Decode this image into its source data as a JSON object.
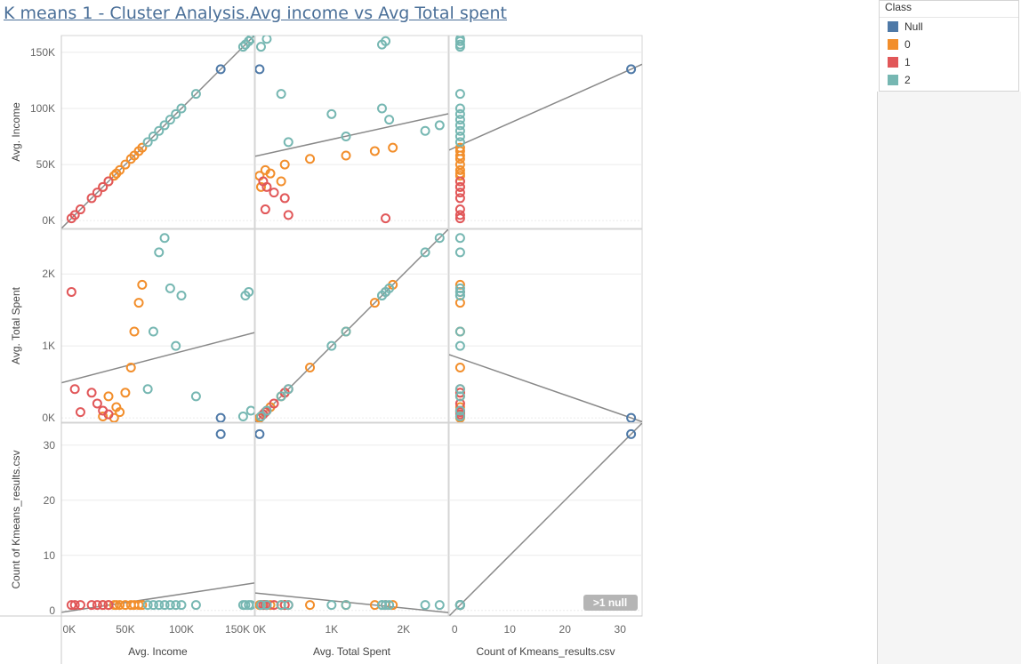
{
  "title": "K means 1 - Cluster Analysis.Avg income vs Avg Total spent",
  "legend": {
    "title": "Class",
    "items": [
      {
        "label": "Null",
        "color": "#4e79a7"
      },
      {
        "label": "0",
        "color": "#f28e2b"
      },
      {
        "label": "1",
        "color": "#e15759"
      },
      {
        "label": "2",
        "color": "#76b7b2"
      }
    ]
  },
  "chart_data": {
    "type": "scatter",
    "matrix": "scatter-plot matrix with linear trend lines",
    "variables": [
      {
        "key": "income",
        "label": "Avg. Income",
        "range": [
          -7000,
          165000
        ],
        "ticks": [
          0,
          50000,
          100000,
          150000
        ],
        "tick_labels": [
          "0K",
          "50K",
          "100K",
          "150K"
        ]
      },
      {
        "key": "spent",
        "label": "Avg. Total Spent",
        "range": [
          -60,
          2620
        ],
        "ticks": [
          0,
          1000,
          2000
        ],
        "tick_labels": [
          "0K",
          "1K",
          "2K"
        ]
      },
      {
        "key": "count",
        "label": "Count of Kmeans_results.csv",
        "range": [
          -1,
          34
        ],
        "ticks": [
          0,
          10,
          20,
          30
        ],
        "tick_labels": [
          "0",
          "10",
          "20",
          "30"
        ]
      }
    ],
    "series": [
      {
        "name": "Null",
        "points": [
          {
            "income": 135000,
            "spent": 0,
            "count": 32
          }
        ]
      },
      {
        "name": "0",
        "points": [
          {
            "income": 40000,
            "spent": 0,
            "count": 1
          },
          {
            "income": 45000,
            "spent": 80,
            "count": 1
          },
          {
            "income": 50000,
            "spent": 350,
            "count": 1
          },
          {
            "income": 55000,
            "spent": 700,
            "count": 1
          },
          {
            "income": 58000,
            "spent": 1200,
            "count": 1
          },
          {
            "income": 62000,
            "spent": 1600,
            "count": 1
          },
          {
            "income": 65000,
            "spent": 1850,
            "count": 1
          },
          {
            "income": 42000,
            "spent": 150,
            "count": 1
          },
          {
            "income": 30000,
            "spent": 20,
            "count": 1
          },
          {
            "income": 35000,
            "spent": 300,
            "count": 1
          }
        ]
      },
      {
        "name": "1",
        "points": [
          {
            "income": 2000,
            "spent": 1750,
            "count": 1
          },
          {
            "income": 5000,
            "spent": 400,
            "count": 1
          },
          {
            "income": 10000,
            "spent": 80,
            "count": 1
          },
          {
            "income": 20000,
            "spent": 350,
            "count": 1
          },
          {
            "income": 25000,
            "spent": 200,
            "count": 1
          },
          {
            "income": 30000,
            "spent": 100,
            "count": 1
          },
          {
            "income": 35000,
            "spent": 50,
            "count": 1
          }
        ]
      },
      {
        "name": "2",
        "points": [
          {
            "income": 70000,
            "spent": 400,
            "count": 1
          },
          {
            "income": 75000,
            "spent": 1200,
            "count": 1
          },
          {
            "income": 80000,
            "spent": 2300,
            "count": 1
          },
          {
            "income": 85000,
            "spent": 2500,
            "count": 1
          },
          {
            "income": 90000,
            "spent": 1800,
            "count": 1
          },
          {
            "income": 95000,
            "spent": 1000,
            "count": 1
          },
          {
            "income": 100000,
            "spent": 1700,
            "count": 1
          },
          {
            "income": 113000,
            "spent": 300,
            "count": 1
          },
          {
            "income": 155000,
            "spent": 20,
            "count": 1
          },
          {
            "income": 157000,
            "spent": 1700,
            "count": 1
          },
          {
            "income": 160000,
            "spent": 1750,
            "count": 1
          },
          {
            "income": 162000,
            "spent": 100,
            "count": 1
          }
        ]
      }
    ],
    "annotation": ">1 null"
  }
}
